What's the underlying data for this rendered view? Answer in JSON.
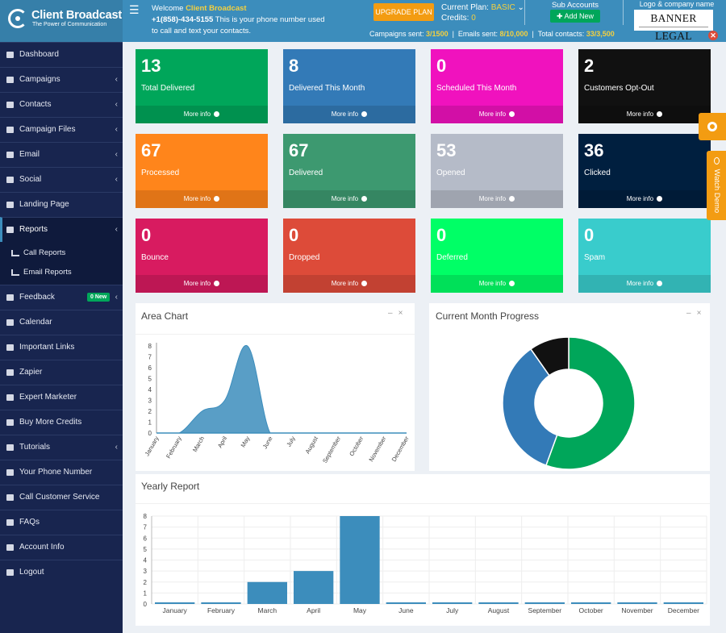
{
  "header": {
    "brand_name": "Client Broadcast",
    "brand_tagline": "The Power of Communication",
    "welcome_prefix": "Welcome ",
    "welcome_name": "Client Broadcast",
    "phone": "+1(858)-434-5155",
    "phone_suffix": " This is your phone number used",
    "phone_line2": "to call and text your contacts.",
    "upgrade_label": "UPGRADE PLAN",
    "plan_label": "Current Plan: ",
    "plan_value": "BASIC",
    "credits_label": "Credits: ",
    "credits_value": "0",
    "campaigns_label": "Campaigns sent: ",
    "campaigns_value": "3/1500",
    "emails_label": "Emails sent: ",
    "emails_value": "8/10,000",
    "contacts_label": "Total contacts: ",
    "contacts_value": "33/3,500",
    "sub_accounts_label": "Sub Accounts",
    "add_new_label": "Add New",
    "logo_company_label": "Logo & company name",
    "company_logo_text": "BANNER LEGAL"
  },
  "sidebar": {
    "dashboard": "Dashboard",
    "campaigns": "Campaigns",
    "contacts": "Contacts",
    "campaign_files": "Campaign Files",
    "email": "Email",
    "social": "Social",
    "landing_page": "Landing Page",
    "reports": "Reports",
    "call_reports": "Call Reports",
    "email_reports": "Email Reports",
    "feedback": "Feedback",
    "feedback_badge": "0 New",
    "calendar": "Calendar",
    "important_links": "Important Links",
    "zapier": "Zapier",
    "expert_marketer": "Expert Marketer",
    "buy_more_credits": "Buy More Credits",
    "tutorials": "Tutorials",
    "your_phone_number": "Your Phone Number",
    "call_customer_service": "Call Customer Service",
    "faqs": "FAQs",
    "account_info": "Account Info",
    "logout": "Logout"
  },
  "more_info": "More info",
  "boxes": [
    {
      "value": "13",
      "label": "Total Delivered",
      "color": "#00a65a"
    },
    {
      "value": "8",
      "label": "Delivered This Month",
      "color": "#337ab7"
    },
    {
      "value": "0",
      "label": "Scheduled This Month",
      "color": "#f012be"
    },
    {
      "value": "2",
      "label": "Customers Opt-Out",
      "color": "#111111"
    },
    {
      "value": "67",
      "label": "Processed",
      "color": "#ff851b"
    },
    {
      "value": "67",
      "label": "Delivered",
      "color": "#3d9970"
    },
    {
      "value": "53",
      "label": "Opened",
      "color": "#b5bbc8"
    },
    {
      "value": "36",
      "label": "Clicked",
      "color": "#001f3f"
    },
    {
      "value": "0",
      "label": "Bounce",
      "color": "#d81b60"
    },
    {
      "value": "0",
      "label": "Dropped",
      "color": "#dd4b39"
    },
    {
      "value": "0",
      "label": "Deferred",
      "color": "#00ff66"
    },
    {
      "value": "0",
      "label": "Spam",
      "color": "#39cccc"
    }
  ],
  "panels": {
    "area_title": "Area Chart",
    "progress_title": "Current Month Progress",
    "yearly_title": "Yearly Report"
  },
  "side_tabs": {
    "watch_demo": "Watch Demo"
  },
  "chart_data": [
    {
      "type": "area",
      "title": "Area Chart",
      "categories": [
        "January",
        "February",
        "March",
        "April",
        "May",
        "June",
        "July",
        "August",
        "September",
        "October",
        "November",
        "December"
      ],
      "values": [
        0,
        0,
        2,
        3,
        8,
        0,
        0,
        0,
        0,
        0,
        0,
        0
      ],
      "y_ticks": [
        0,
        1,
        2,
        3,
        4,
        5,
        6,
        7,
        8
      ],
      "ylim": [
        0,
        8
      ],
      "color": "#3c8dbc"
    },
    {
      "type": "pie",
      "title": "Current Month Progress",
      "slices": [
        {
          "value": 8,
          "color": "#00a65a"
        },
        {
          "value": 5,
          "color": "#337ab7"
        },
        {
          "value": 1.4,
          "color": "#111111"
        }
      ]
    },
    {
      "type": "bar",
      "title": "Yearly Report",
      "categories": [
        "January",
        "February",
        "March",
        "April",
        "May",
        "June",
        "July",
        "August",
        "September",
        "October",
        "November",
        "December"
      ],
      "values": [
        0,
        0,
        2,
        3,
        8,
        0,
        0,
        0,
        0,
        0,
        0,
        0
      ],
      "y_ticks": [
        0,
        1,
        2,
        3,
        4,
        5,
        6,
        7,
        8
      ],
      "ylim": [
        0,
        8
      ],
      "color": "#3c8dbc",
      "grid": true
    }
  ]
}
